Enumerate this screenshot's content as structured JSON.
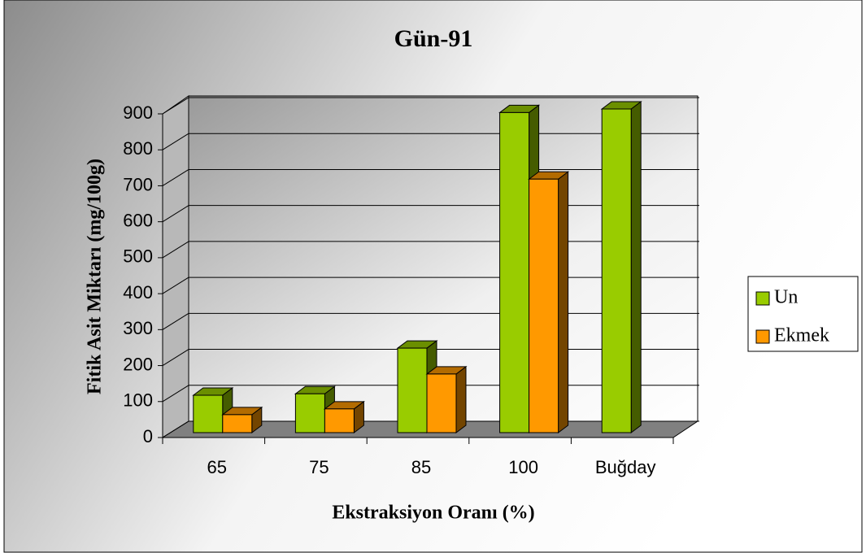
{
  "chart_data": {
    "type": "bar3d",
    "title": "Gün-91",
    "x_label": "Ekstraksiyon Oranı (%)",
    "y_label": "Fitik Asit Miktarı (mg/100g)",
    "categories": [
      "65",
      "75",
      "85",
      "100",
      "Buğday"
    ],
    "series": [
      {
        "name": "Un",
        "color": "#99cc00",
        "values": [
          104,
          108,
          235,
          890,
          900
        ]
      },
      {
        "name": "Ekmek",
        "color": "#ff9900",
        "values": [
          50,
          66,
          163,
          705,
          null
        ]
      }
    ],
    "ylim": [
      0,
      900
    ],
    "yticks": [
      0,
      100,
      200,
      300,
      400,
      500,
      600,
      700,
      800,
      900
    ],
    "grid": true,
    "legend": "right"
  }
}
